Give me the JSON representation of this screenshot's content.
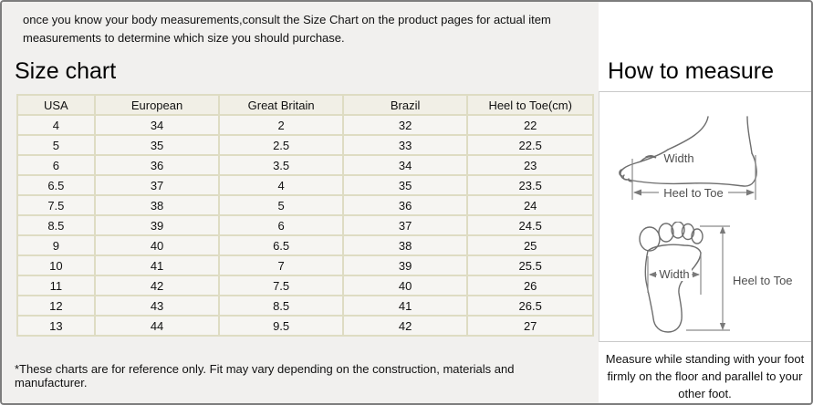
{
  "intro_text": "once you know your body measurements,consult the Size Chart on the product pages for actual item measurements to determine which size you should purchase.",
  "size_chart": {
    "title": "Size chart",
    "table": {
      "headers": [
        "USA",
        "European",
        "Great Britain",
        "Brazil",
        "Heel to Toe(cm)"
      ],
      "rows": [
        [
          "4",
          "34",
          "2",
          "32",
          "22"
        ],
        [
          "5",
          "35",
          "2.5",
          "33",
          "22.5"
        ],
        [
          "6",
          "36",
          "3.5",
          "34",
          "23"
        ],
        [
          "6.5",
          "37",
          "4",
          "35",
          "23.5"
        ],
        [
          "7.5",
          "38",
          "5",
          "36",
          "24"
        ],
        [
          "8.5",
          "39",
          "6",
          "37",
          "24.5"
        ],
        [
          "9",
          "40",
          "6.5",
          "38",
          "25"
        ],
        [
          "10",
          "41",
          "7",
          "39",
          "25.5"
        ],
        [
          "11",
          "42",
          "7.5",
          "40",
          "26"
        ],
        [
          "12",
          "43",
          "8.5",
          "41",
          "26.5"
        ],
        [
          "13",
          "44",
          "9.5",
          "42",
          "27"
        ]
      ]
    },
    "footnote": "*These charts are for reference only. Fit may vary depending on the construction, materials and manufacturer."
  },
  "how_to_measure": {
    "title": "How to measure",
    "side_view": {
      "width_label": "Width",
      "heel_to_toe_label": "Heel to Toe"
    },
    "sole_view": {
      "width_label": "Width",
      "heel_to_toe_label": "Heel to Toe"
    },
    "instruction": "Measure while standing with your foot firmly on the floor and parallel to your other foot."
  },
  "colors": {
    "page_background": "#f1f0ee",
    "panel_background": "#ffffff",
    "table_border": "#dedcc3",
    "table_header_background": "#f1efe6",
    "table_cell_background": "#f6f5f2",
    "outer_border": "#7d7d7d",
    "diagram_stroke": "#6e6e6e"
  }
}
